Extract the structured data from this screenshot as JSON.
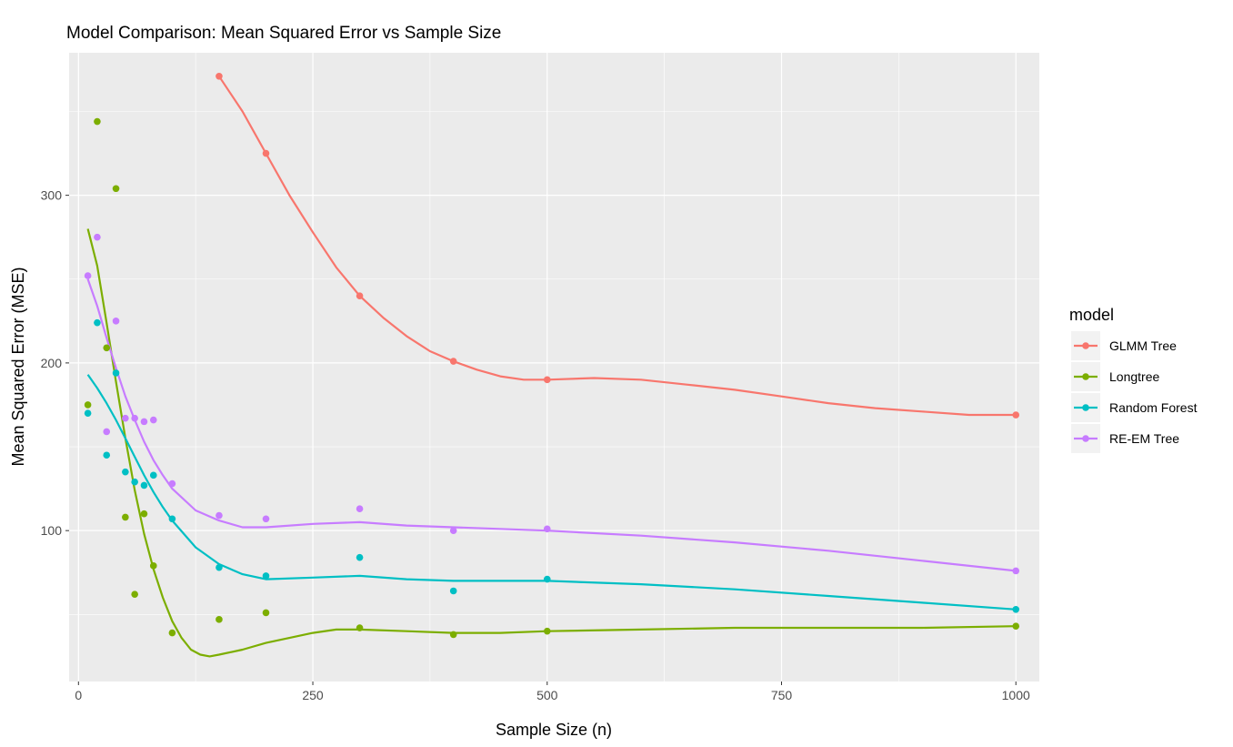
{
  "chart_data": {
    "type": "scatter",
    "title": "Model Comparison: Mean Squared Error vs Sample Size",
    "xlabel": "Sample Size (n)",
    "ylabel": "Mean Squared Error (MSE)",
    "xlim": [
      -10,
      1025
    ],
    "ylim": [
      10,
      385
    ],
    "xticks": [
      0,
      250,
      500,
      750,
      1000
    ],
    "yticks": [
      100,
      200,
      300
    ],
    "grid": true,
    "background": "#EBEBEB",
    "legend": {
      "title": "model",
      "placement": "right"
    },
    "series": [
      {
        "name": "GLMM Tree",
        "color": "#F8766D",
        "points": [
          [
            150,
            371
          ],
          [
            200,
            325
          ],
          [
            300,
            240
          ],
          [
            400,
            201
          ],
          [
            500,
            190
          ],
          [
            1000,
            169
          ]
        ],
        "smooth": [
          [
            150,
            371
          ],
          [
            175,
            350
          ],
          [
            200,
            325
          ],
          [
            225,
            300
          ],
          [
            250,
            278
          ],
          [
            275,
            257
          ],
          [
            300,
            240
          ],
          [
            325,
            227
          ],
          [
            350,
            216
          ],
          [
            375,
            207
          ],
          [
            400,
            201
          ],
          [
            425,
            196
          ],
          [
            450,
            192
          ],
          [
            475,
            190
          ],
          [
            500,
            190
          ],
          [
            550,
            191
          ],
          [
            600,
            190
          ],
          [
            650,
            187
          ],
          [
            700,
            184
          ],
          [
            750,
            180
          ],
          [
            800,
            176
          ],
          [
            850,
            173
          ],
          [
            900,
            171
          ],
          [
            950,
            169
          ],
          [
            1000,
            169
          ]
        ]
      },
      {
        "name": "Longtree",
        "color": "#7CAE00",
        "points": [
          [
            10,
            175
          ],
          [
            20,
            344
          ],
          [
            30,
            209
          ],
          [
            40,
            304
          ],
          [
            50,
            108
          ],
          [
            60,
            62
          ],
          [
            70,
            110
          ],
          [
            80,
            79
          ],
          [
            100,
            39
          ],
          [
            150,
            47
          ],
          [
            200,
            51
          ],
          [
            300,
            42
          ],
          [
            400,
            38
          ],
          [
            500,
            40
          ],
          [
            1000,
            43
          ]
        ],
        "smooth": [
          [
            10,
            280
          ],
          [
            20,
            258
          ],
          [
            30,
            224
          ],
          [
            40,
            189
          ],
          [
            50,
            155
          ],
          [
            60,
            124
          ],
          [
            70,
            98
          ],
          [
            80,
            77
          ],
          [
            90,
            60
          ],
          [
            100,
            46
          ],
          [
            110,
            36
          ],
          [
            120,
            29
          ],
          [
            130,
            26
          ],
          [
            140,
            25
          ],
          [
            150,
            26
          ],
          [
            175,
            29
          ],
          [
            200,
            33
          ],
          [
            225,
            36
          ],
          [
            250,
            39
          ],
          [
            275,
            41
          ],
          [
            300,
            41
          ],
          [
            350,
            40
          ],
          [
            400,
            39
          ],
          [
            450,
            39
          ],
          [
            500,
            40
          ],
          [
            600,
            41
          ],
          [
            700,
            42
          ],
          [
            800,
            42
          ],
          [
            900,
            42
          ],
          [
            1000,
            43
          ]
        ]
      },
      {
        "name": "Random Forest",
        "color": "#00BFC4",
        "points": [
          [
            10,
            170
          ],
          [
            20,
            224
          ],
          [
            30,
            145
          ],
          [
            40,
            194
          ],
          [
            50,
            135
          ],
          [
            60,
            129
          ],
          [
            70,
            127
          ],
          [
            80,
            133
          ],
          [
            100,
            107
          ],
          [
            150,
            78
          ],
          [
            200,
            73
          ],
          [
            300,
            84
          ],
          [
            400,
            64
          ],
          [
            500,
            71
          ],
          [
            1000,
            53
          ]
        ],
        "smooth": [
          [
            10,
            193
          ],
          [
            20,
            185
          ],
          [
            30,
            176
          ],
          [
            40,
            166
          ],
          [
            50,
            155
          ],
          [
            60,
            144
          ],
          [
            70,
            133
          ],
          [
            80,
            123
          ],
          [
            90,
            114
          ],
          [
            100,
            106
          ],
          [
            125,
            90
          ],
          [
            150,
            80
          ],
          [
            175,
            74
          ],
          [
            200,
            71
          ],
          [
            250,
            72
          ],
          [
            300,
            73
          ],
          [
            350,
            71
          ],
          [
            400,
            70
          ],
          [
            500,
            70
          ],
          [
            600,
            68
          ],
          [
            700,
            65
          ],
          [
            800,
            61
          ],
          [
            900,
            57
          ],
          [
            1000,
            53
          ]
        ]
      },
      {
        "name": "RE-EM Tree",
        "color": "#C77CFF",
        "points": [
          [
            10,
            252
          ],
          [
            20,
            275
          ],
          [
            30,
            159
          ],
          [
            40,
            225
          ],
          [
            50,
            167
          ],
          [
            60,
            167
          ],
          [
            70,
            165
          ],
          [
            80,
            166
          ],
          [
            100,
            128
          ],
          [
            150,
            109
          ],
          [
            200,
            107
          ],
          [
            300,
            113
          ],
          [
            400,
            100
          ],
          [
            500,
            101
          ],
          [
            1000,
            76
          ]
        ],
        "smooth": [
          [
            10,
            250
          ],
          [
            20,
            234
          ],
          [
            30,
            215
          ],
          [
            40,
            197
          ],
          [
            50,
            180
          ],
          [
            60,
            166
          ],
          [
            70,
            153
          ],
          [
            80,
            142
          ],
          [
            90,
            133
          ],
          [
            100,
            125
          ],
          [
            125,
            112
          ],
          [
            150,
            106
          ],
          [
            175,
            102
          ],
          [
            200,
            102
          ],
          [
            250,
            104
          ],
          [
            300,
            105
          ],
          [
            350,
            103
          ],
          [
            400,
            102
          ],
          [
            500,
            100
          ],
          [
            600,
            97
          ],
          [
            700,
            93
          ],
          [
            800,
            88
          ],
          [
            900,
            82
          ],
          [
            1000,
            76
          ]
        ]
      }
    ]
  }
}
